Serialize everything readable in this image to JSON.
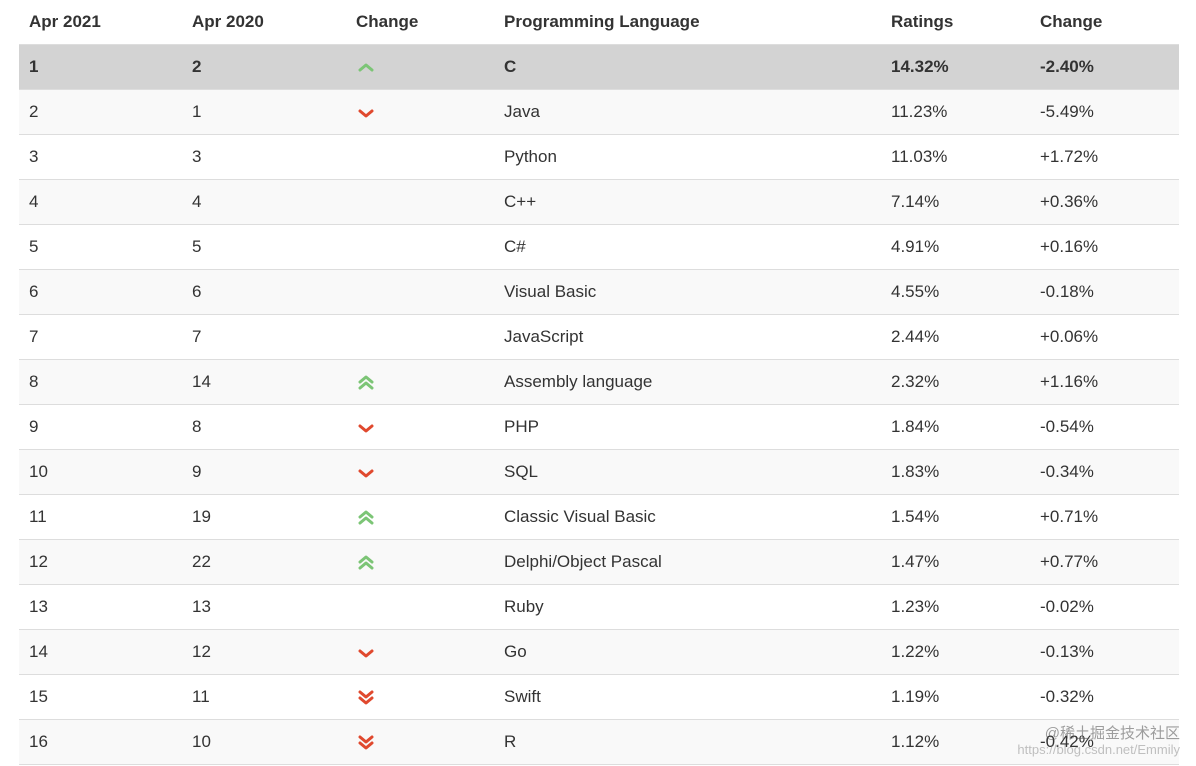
{
  "headers": [
    "Apr 2021",
    "Apr 2020",
    "Change",
    "Programming Language",
    "Ratings",
    "Change"
  ],
  "colors": {
    "up": "#7cc576",
    "down": "#e0492e",
    "top_row": "#d3d3d3",
    "odd_row": "#f9f9f9",
    "border": "#dddddd"
  },
  "rows": [
    {
      "rank_2021": "1",
      "rank_2020": "2",
      "trend": "up",
      "language": "C",
      "rating": "14.32%",
      "change": "-2.40%"
    },
    {
      "rank_2021": "2",
      "rank_2020": "1",
      "trend": "down",
      "language": "Java",
      "rating": "11.23%",
      "change": "-5.49%"
    },
    {
      "rank_2021": "3",
      "rank_2020": "3",
      "trend": "none",
      "language": "Python",
      "rating": "11.03%",
      "change": "+1.72%"
    },
    {
      "rank_2021": "4",
      "rank_2020": "4",
      "trend": "none",
      "language": "C++",
      "rating": "7.14%",
      "change": "+0.36%"
    },
    {
      "rank_2021": "5",
      "rank_2020": "5",
      "trend": "none",
      "language": "C#",
      "rating": "4.91%",
      "change": "+0.16%"
    },
    {
      "rank_2021": "6",
      "rank_2020": "6",
      "trend": "none",
      "language": "Visual Basic",
      "rating": "4.55%",
      "change": "-0.18%"
    },
    {
      "rank_2021": "7",
      "rank_2020": "7",
      "trend": "none",
      "language": "JavaScript",
      "rating": "2.44%",
      "change": "+0.06%"
    },
    {
      "rank_2021": "8",
      "rank_2020": "14",
      "trend": "double-up",
      "language": "Assembly language",
      "rating": "2.32%",
      "change": "+1.16%"
    },
    {
      "rank_2021": "9",
      "rank_2020": "8",
      "trend": "down",
      "language": "PHP",
      "rating": "1.84%",
      "change": "-0.54%"
    },
    {
      "rank_2021": "10",
      "rank_2020": "9",
      "trend": "down",
      "language": "SQL",
      "rating": "1.83%",
      "change": "-0.34%"
    },
    {
      "rank_2021": "11",
      "rank_2020": "19",
      "trend": "double-up",
      "language": "Classic Visual Basic",
      "rating": "1.54%",
      "change": "+0.71%"
    },
    {
      "rank_2021": "12",
      "rank_2020": "22",
      "trend": "double-up",
      "language": "Delphi/Object Pascal",
      "rating": "1.47%",
      "change": "+0.77%"
    },
    {
      "rank_2021": "13",
      "rank_2020": "13",
      "trend": "none",
      "language": "Ruby",
      "rating": "1.23%",
      "change": "-0.02%"
    },
    {
      "rank_2021": "14",
      "rank_2020": "12",
      "trend": "down",
      "language": "Go",
      "rating": "1.22%",
      "change": "-0.13%"
    },
    {
      "rank_2021": "15",
      "rank_2020": "11",
      "trend": "double-down",
      "language": "Swift",
      "rating": "1.19%",
      "change": "-0.32%"
    },
    {
      "rank_2021": "16",
      "rank_2020": "10",
      "trend": "double-down",
      "language": "R",
      "rating": "1.12%",
      "change": "-0.42%"
    }
  ],
  "watermark": {
    "main": "@稀土掘金技术社区",
    "sub": "https://blog.csdn.net/Emmily"
  }
}
